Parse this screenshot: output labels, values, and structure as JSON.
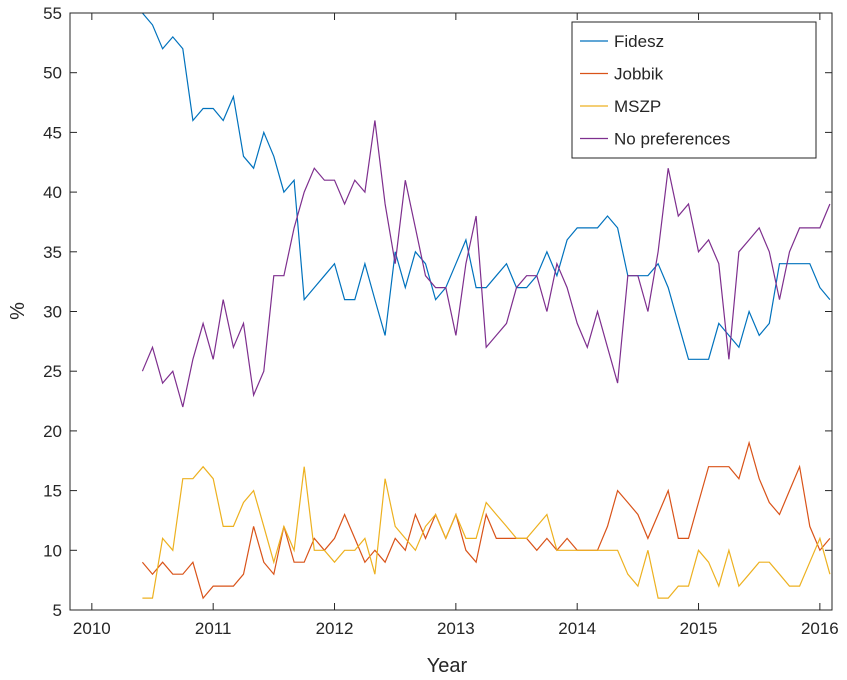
{
  "chart_data": {
    "type": "line",
    "xlabel": "Year",
    "ylabel": "%",
    "xlim": [
      2009.82,
      2016.1
    ],
    "ylim": [
      5,
      55
    ],
    "xticks": [
      2010,
      2011,
      2012,
      2013,
      2014,
      2015,
      2016
    ],
    "yticks": [
      5,
      10,
      15,
      20,
      25,
      30,
      35,
      40,
      45,
      50,
      55
    ],
    "legend": "northeast",
    "x": [
      2010.417,
      2010.5,
      2010.583,
      2010.667,
      2010.75,
      2010.833,
      2010.917,
      2011,
      2011.083,
      2011.167,
      2011.25,
      2011.333,
      2011.417,
      2011.5,
      2011.583,
      2011.667,
      2011.75,
      2011.833,
      2011.917,
      2012,
      2012.083,
      2012.167,
      2012.25,
      2012.333,
      2012.417,
      2012.5,
      2012.583,
      2012.667,
      2012.75,
      2012.833,
      2012.917,
      2013,
      2013.083,
      2013.167,
      2013.25,
      2013.333,
      2013.417,
      2013.5,
      2013.583,
      2013.667,
      2013.75,
      2013.833,
      2013.917,
      2014,
      2014.083,
      2014.167,
      2014.25,
      2014.333,
      2014.417,
      2014.5,
      2014.583,
      2014.667,
      2014.75,
      2014.833,
      2014.917,
      2015,
      2015.083,
      2015.167,
      2015.25,
      2015.333,
      2015.417,
      2015.5,
      2015.583,
      2015.667,
      2015.75,
      2015.833,
      2015.917,
      2016,
      2016.083
    ],
    "series": [
      {
        "name": "Fidesz",
        "color": "#0072BD",
        "values": [
          55,
          54,
          52,
          53,
          52,
          46,
          47,
          47,
          46,
          48,
          43,
          42,
          45,
          43,
          40,
          41,
          31,
          32,
          33,
          34,
          31,
          31,
          34,
          31,
          28,
          35,
          32,
          35,
          34,
          31,
          32,
          34,
          36,
          32,
          32,
          33,
          34,
          32,
          32,
          33,
          35,
          33,
          36,
          37,
          37,
          37,
          38,
          37,
          33,
          33,
          33,
          34,
          32,
          29,
          26,
          26,
          26,
          29,
          28,
          27,
          30,
          28,
          29,
          34,
          34,
          34,
          34,
          32,
          31
        ]
      },
      {
        "name": "Jobbik",
        "color": "#D95319",
        "values": [
          9,
          8,
          9,
          8,
          8,
          9,
          6,
          7,
          7,
          7,
          8,
          12,
          9,
          8,
          12,
          9,
          9,
          11,
          10,
          11,
          13,
          11,
          9,
          10,
          9,
          11,
          10,
          13,
          11,
          13,
          11,
          13,
          10,
          9,
          13,
          11,
          11,
          11,
          11,
          10,
          11,
          10,
          11,
          10,
          10,
          10,
          12,
          15,
          14,
          13,
          11,
          13,
          15,
          11,
          11,
          14,
          17,
          17,
          17,
          16,
          19,
          16,
          14,
          13,
          15,
          17,
          12,
          10,
          11
        ]
      },
      {
        "name": "MSZP",
        "color": "#EDB120",
        "values": [
          6,
          6,
          11,
          10,
          16,
          16,
          17,
          16,
          12,
          12,
          14,
          15,
          12,
          9,
          12,
          10,
          17,
          10,
          10,
          9,
          10,
          10,
          11,
          8,
          16,
          12,
          11,
          10,
          12,
          13,
          11,
          13,
          11,
          11,
          14,
          13,
          12,
          11,
          11,
          12,
          13,
          10,
          10,
          10,
          10,
          10,
          10,
          10,
          8,
          7,
          10,
          6,
          6,
          7,
          7,
          10,
          9,
          7,
          10,
          7,
          8,
          9,
          9,
          8,
          7,
          7,
          9,
          11,
          8
        ]
      },
      {
        "name": "No preferences",
        "color": "#7E2F8E",
        "values": [
          25,
          27,
          24,
          25,
          22,
          26,
          29,
          26,
          31,
          27,
          29,
          23,
          25,
          33,
          33,
          37,
          40,
          42,
          41,
          41,
          39,
          41,
          40,
          46,
          39,
          34,
          41,
          37,
          33,
          32,
          32,
          28,
          34,
          38,
          27,
          28,
          29,
          32,
          33,
          33,
          30,
          34,
          32,
          29,
          27,
          30,
          27,
          24,
          33,
          33,
          30,
          35,
          42,
          38,
          39,
          35,
          36,
          34,
          26,
          35,
          36,
          37,
          35,
          31,
          35,
          37,
          37,
          37,
          39
        ]
      }
    ]
  }
}
